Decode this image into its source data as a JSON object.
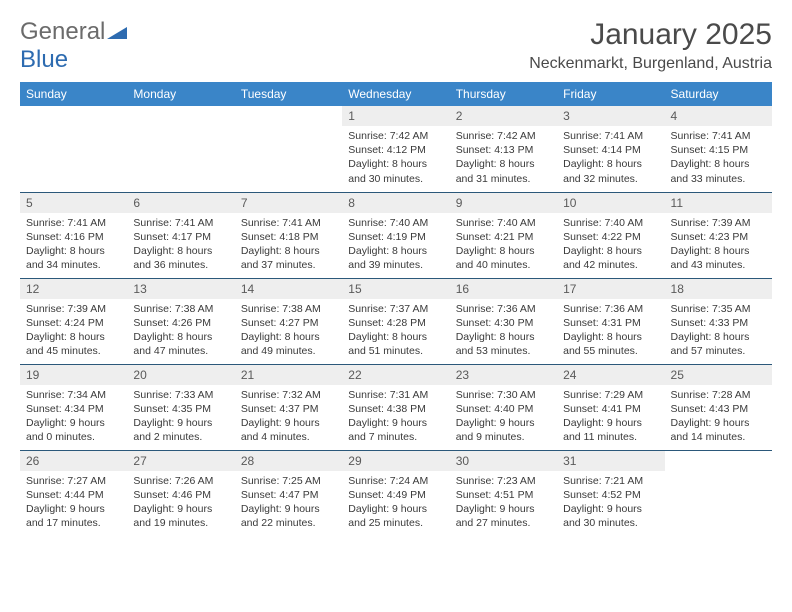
{
  "brand": {
    "part1": "General",
    "part2": "Blue"
  },
  "title": "January 2025",
  "location": "Neckenmarkt, Burgenland, Austria",
  "colors": {
    "header_bg": "#3a85c8",
    "header_text": "#ffffff",
    "row_border": "#2b587a",
    "daynum_bg": "#eeeeee",
    "text": "#3a3a3a",
    "brand_blue": "#2d6bb0",
    "brand_gray": "#6b6b6b"
  },
  "day_headers": [
    "Sunday",
    "Monday",
    "Tuesday",
    "Wednesday",
    "Thursday",
    "Friday",
    "Saturday"
  ],
  "weeks": [
    [
      {
        "empty": true
      },
      {
        "empty": true
      },
      {
        "empty": true
      },
      {
        "num": "1",
        "sunrise": "Sunrise: 7:42 AM",
        "sunset": "Sunset: 4:12 PM",
        "day1": "Daylight: 8 hours",
        "day2": "and 30 minutes."
      },
      {
        "num": "2",
        "sunrise": "Sunrise: 7:42 AM",
        "sunset": "Sunset: 4:13 PM",
        "day1": "Daylight: 8 hours",
        "day2": "and 31 minutes."
      },
      {
        "num": "3",
        "sunrise": "Sunrise: 7:41 AM",
        "sunset": "Sunset: 4:14 PM",
        "day1": "Daylight: 8 hours",
        "day2": "and 32 minutes."
      },
      {
        "num": "4",
        "sunrise": "Sunrise: 7:41 AM",
        "sunset": "Sunset: 4:15 PM",
        "day1": "Daylight: 8 hours",
        "day2": "and 33 minutes."
      }
    ],
    [
      {
        "num": "5",
        "sunrise": "Sunrise: 7:41 AM",
        "sunset": "Sunset: 4:16 PM",
        "day1": "Daylight: 8 hours",
        "day2": "and 34 minutes."
      },
      {
        "num": "6",
        "sunrise": "Sunrise: 7:41 AM",
        "sunset": "Sunset: 4:17 PM",
        "day1": "Daylight: 8 hours",
        "day2": "and 36 minutes."
      },
      {
        "num": "7",
        "sunrise": "Sunrise: 7:41 AM",
        "sunset": "Sunset: 4:18 PM",
        "day1": "Daylight: 8 hours",
        "day2": "and 37 minutes."
      },
      {
        "num": "8",
        "sunrise": "Sunrise: 7:40 AM",
        "sunset": "Sunset: 4:19 PM",
        "day1": "Daylight: 8 hours",
        "day2": "and 39 minutes."
      },
      {
        "num": "9",
        "sunrise": "Sunrise: 7:40 AM",
        "sunset": "Sunset: 4:21 PM",
        "day1": "Daylight: 8 hours",
        "day2": "and 40 minutes."
      },
      {
        "num": "10",
        "sunrise": "Sunrise: 7:40 AM",
        "sunset": "Sunset: 4:22 PM",
        "day1": "Daylight: 8 hours",
        "day2": "and 42 minutes."
      },
      {
        "num": "11",
        "sunrise": "Sunrise: 7:39 AM",
        "sunset": "Sunset: 4:23 PM",
        "day1": "Daylight: 8 hours",
        "day2": "and 43 minutes."
      }
    ],
    [
      {
        "num": "12",
        "sunrise": "Sunrise: 7:39 AM",
        "sunset": "Sunset: 4:24 PM",
        "day1": "Daylight: 8 hours",
        "day2": "and 45 minutes."
      },
      {
        "num": "13",
        "sunrise": "Sunrise: 7:38 AM",
        "sunset": "Sunset: 4:26 PM",
        "day1": "Daylight: 8 hours",
        "day2": "and 47 minutes."
      },
      {
        "num": "14",
        "sunrise": "Sunrise: 7:38 AM",
        "sunset": "Sunset: 4:27 PM",
        "day1": "Daylight: 8 hours",
        "day2": "and 49 minutes."
      },
      {
        "num": "15",
        "sunrise": "Sunrise: 7:37 AM",
        "sunset": "Sunset: 4:28 PM",
        "day1": "Daylight: 8 hours",
        "day2": "and 51 minutes."
      },
      {
        "num": "16",
        "sunrise": "Sunrise: 7:36 AM",
        "sunset": "Sunset: 4:30 PM",
        "day1": "Daylight: 8 hours",
        "day2": "and 53 minutes."
      },
      {
        "num": "17",
        "sunrise": "Sunrise: 7:36 AM",
        "sunset": "Sunset: 4:31 PM",
        "day1": "Daylight: 8 hours",
        "day2": "and 55 minutes."
      },
      {
        "num": "18",
        "sunrise": "Sunrise: 7:35 AM",
        "sunset": "Sunset: 4:33 PM",
        "day1": "Daylight: 8 hours",
        "day2": "and 57 minutes."
      }
    ],
    [
      {
        "num": "19",
        "sunrise": "Sunrise: 7:34 AM",
        "sunset": "Sunset: 4:34 PM",
        "day1": "Daylight: 9 hours",
        "day2": "and 0 minutes."
      },
      {
        "num": "20",
        "sunrise": "Sunrise: 7:33 AM",
        "sunset": "Sunset: 4:35 PM",
        "day1": "Daylight: 9 hours",
        "day2": "and 2 minutes."
      },
      {
        "num": "21",
        "sunrise": "Sunrise: 7:32 AM",
        "sunset": "Sunset: 4:37 PM",
        "day1": "Daylight: 9 hours",
        "day2": "and 4 minutes."
      },
      {
        "num": "22",
        "sunrise": "Sunrise: 7:31 AM",
        "sunset": "Sunset: 4:38 PM",
        "day1": "Daylight: 9 hours",
        "day2": "and 7 minutes."
      },
      {
        "num": "23",
        "sunrise": "Sunrise: 7:30 AM",
        "sunset": "Sunset: 4:40 PM",
        "day1": "Daylight: 9 hours",
        "day2": "and 9 minutes."
      },
      {
        "num": "24",
        "sunrise": "Sunrise: 7:29 AM",
        "sunset": "Sunset: 4:41 PM",
        "day1": "Daylight: 9 hours",
        "day2": "and 11 minutes."
      },
      {
        "num": "25",
        "sunrise": "Sunrise: 7:28 AM",
        "sunset": "Sunset: 4:43 PM",
        "day1": "Daylight: 9 hours",
        "day2": "and 14 minutes."
      }
    ],
    [
      {
        "num": "26",
        "sunrise": "Sunrise: 7:27 AM",
        "sunset": "Sunset: 4:44 PM",
        "day1": "Daylight: 9 hours",
        "day2": "and 17 minutes."
      },
      {
        "num": "27",
        "sunrise": "Sunrise: 7:26 AM",
        "sunset": "Sunset: 4:46 PM",
        "day1": "Daylight: 9 hours",
        "day2": "and 19 minutes."
      },
      {
        "num": "28",
        "sunrise": "Sunrise: 7:25 AM",
        "sunset": "Sunset: 4:47 PM",
        "day1": "Daylight: 9 hours",
        "day2": "and 22 minutes."
      },
      {
        "num": "29",
        "sunrise": "Sunrise: 7:24 AM",
        "sunset": "Sunset: 4:49 PM",
        "day1": "Daylight: 9 hours",
        "day2": "and 25 minutes."
      },
      {
        "num": "30",
        "sunrise": "Sunrise: 7:23 AM",
        "sunset": "Sunset: 4:51 PM",
        "day1": "Daylight: 9 hours",
        "day2": "and 27 minutes."
      },
      {
        "num": "31",
        "sunrise": "Sunrise: 7:21 AM",
        "sunset": "Sunset: 4:52 PM",
        "day1": "Daylight: 9 hours",
        "day2": "and 30 minutes."
      },
      {
        "empty": true
      }
    ]
  ]
}
